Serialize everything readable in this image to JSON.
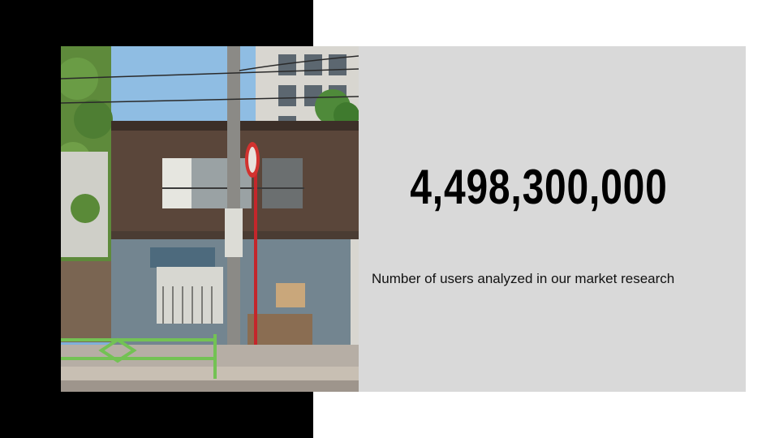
{
  "slide": {
    "stat_value": "4,498,300,000",
    "stat_caption": "Number of users analyzed in our market research"
  },
  "photo": {
    "subject": "old-wooden-house-street-photo"
  },
  "colors": {
    "black_band": "#000000",
    "gray_panel": "#d9d9d9",
    "text": "#000000",
    "background": "#ffffff"
  }
}
